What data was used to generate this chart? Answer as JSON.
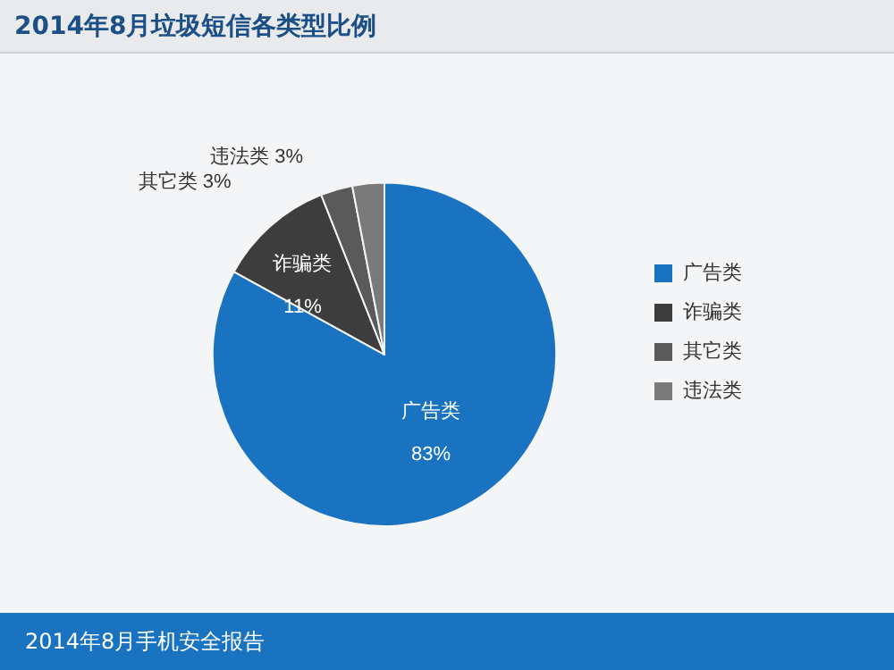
{
  "chart_data": {
    "type": "pie",
    "title": "2014年8月垃圾短信各类型比例",
    "categories": [
      "广告类",
      "诈骗类",
      "其它类",
      "违法类"
    ],
    "values": [
      83,
      11,
      3,
      3
    ],
    "colors": [
      "#1a73c0",
      "#3d3d3d",
      "#5a5a5a",
      "#7a7a7a"
    ],
    "legend": "right",
    "value_labels": [
      "83%",
      "11%",
      "3%",
      "3%"
    ],
    "annotations": [
      "2014年8月手机安全报告"
    ]
  }
}
